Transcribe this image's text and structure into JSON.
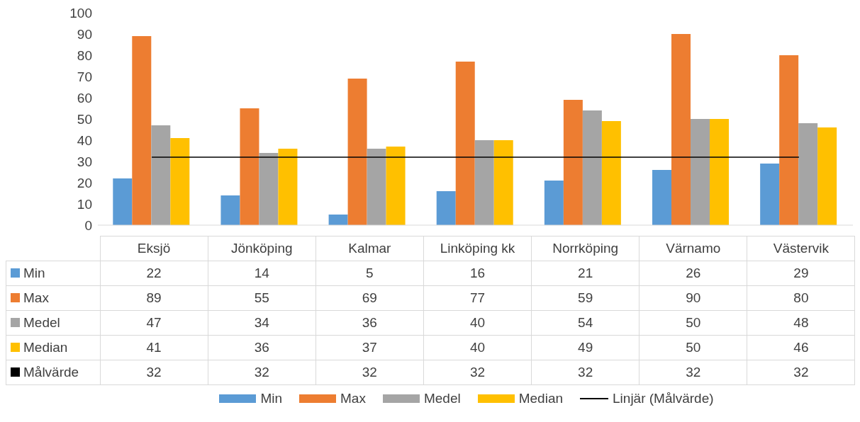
{
  "chart_data": {
    "type": "bar",
    "categories": [
      "Eksjö",
      "Jönköping",
      "Kalmar",
      "Linköping kk",
      "Norrköping",
      "Värnamo",
      "Västervik"
    ],
    "series": [
      {
        "name": "Min",
        "color": "#5b9bd5",
        "values": [
          22,
          14,
          5,
          16,
          21,
          26,
          29
        ]
      },
      {
        "name": "Max",
        "color": "#ed7d31",
        "values": [
          89,
          55,
          69,
          77,
          59,
          90,
          80
        ]
      },
      {
        "name": "Medel",
        "color": "#a5a5a5",
        "values": [
          47,
          34,
          36,
          40,
          54,
          50,
          48
        ]
      },
      {
        "name": "Median",
        "color": "#ffc000",
        "values": [
          41,
          36,
          37,
          40,
          49,
          50,
          46
        ]
      },
      {
        "name": "Målvärde",
        "type": "line",
        "color": "#000000",
        "values": [
          32,
          32,
          32,
          32,
          32,
          32,
          32
        ]
      }
    ],
    "ylim": [
      0,
      100
    ],
    "yticks": [
      0,
      10,
      20,
      30,
      40,
      50,
      60,
      70,
      80,
      90,
      100
    ],
    "grid": false,
    "legend": "bottom",
    "data_labels": true,
    "annotations": [
      "Linjär (Målvärde)"
    ]
  }
}
